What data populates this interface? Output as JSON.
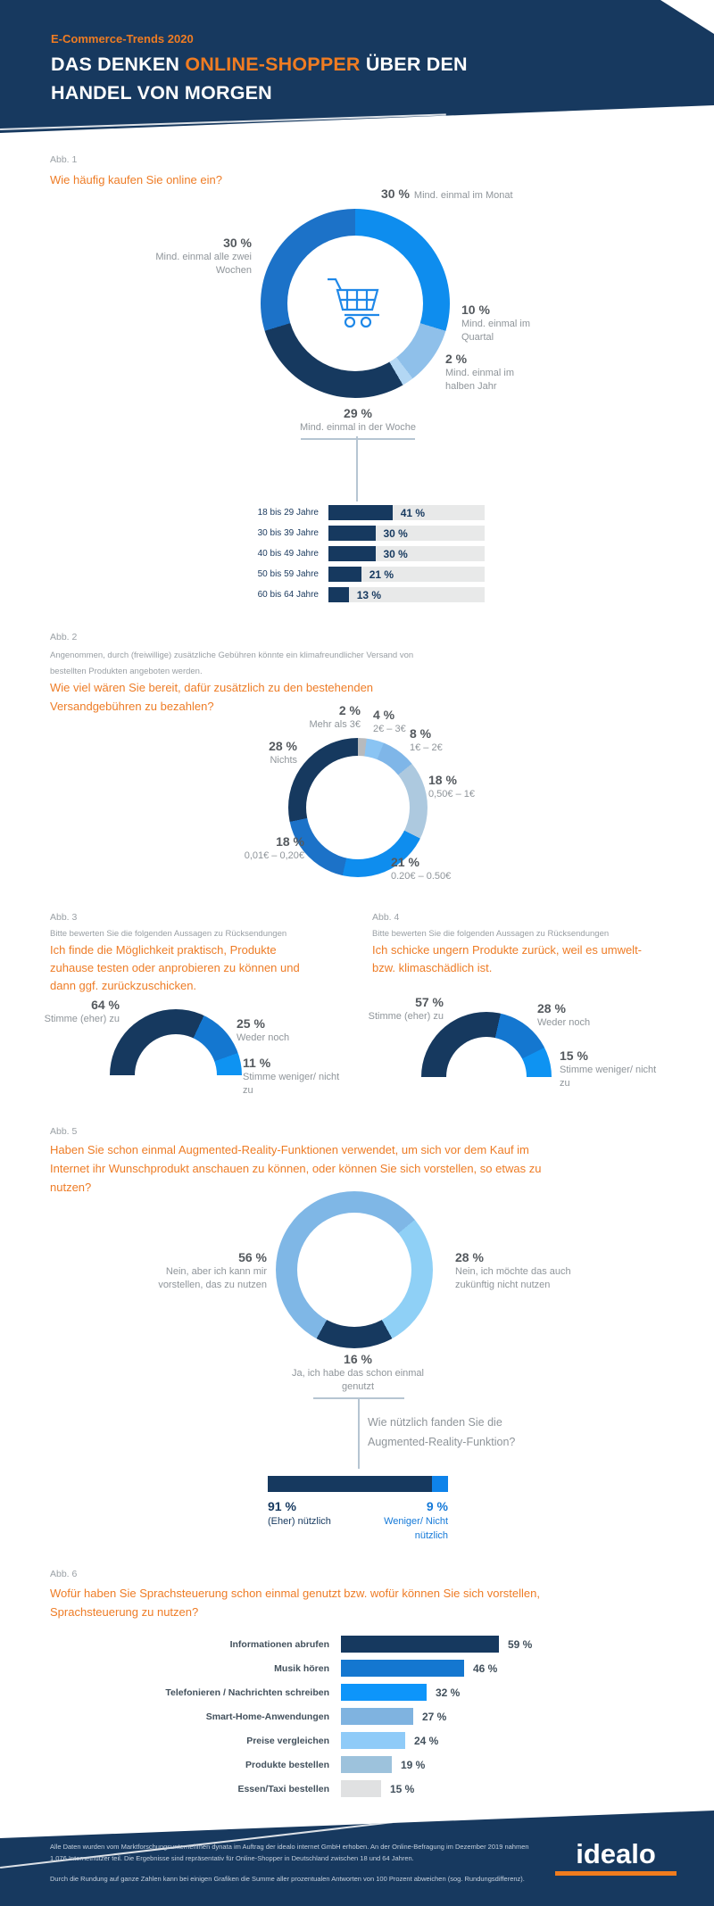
{
  "header": {
    "kicker": "E-Commerce-Trends 2020",
    "title_1": "DAS DENKEN ",
    "title_highlight": "ONLINE-SHOPPER",
    "title_2": " ÜBER DEN",
    "title_3": "HANDEL VON MORGEN"
  },
  "colors": {
    "navy": "#16395f",
    "orange": "#ee7c26",
    "bright_blue": "#0e8dee",
    "medium_blue": "#1c72c8",
    "light_blue": "#8fc0ea",
    "connector_gray": "#b6c5d2"
  },
  "figures": {
    "f1": {
      "label": "Abb. 1"
    },
    "f2": {
      "label": "Abb. 2",
      "intro": "Angenommen, durch (freiwillige) zusätzliche Gebühren könnte ein klimafreundlicher Versand von bestellten Produkten angeboten werden.",
      "question": "Wie viel wären Sie bereit, dafür zusätzlich zu den bestehenden Versandgebühren zu bezahlen?"
    },
    "f3": {
      "label": "Abb. 3",
      "intro": "Bitte bewerten Sie die folgenden Aussagen zu Rücksendungen",
      "statement": "Ich finde die Möglichkeit praktisch, Produkte zuhause testen oder anprobieren zu können und dann ggf. zurückzuschicken."
    },
    "f4": {
      "label": "Abb. 4",
      "intro": "Bitte bewerten Sie die folgenden Aussagen zu Rücksendungen",
      "statement": "Ich schicke ungern Produkte zurück, weil es umwelt- bzw. klimaschädlich ist."
    },
    "f5": {
      "label": "Abb. 5"
    },
    "f6": {
      "label": "Abb. 6"
    }
  },
  "chart_data": [
    {
      "id": "abb1",
      "type": "donut",
      "question": "Wie häufig kaufen Sie online ein?",
      "center_icon": "shopping-cart-icon",
      "segments": [
        {
          "label": "Mind. einmal im Monat",
          "value": 30,
          "pct": "30 %",
          "color": "#0e8dee"
        },
        {
          "label": "Mind. einmal im Quartal",
          "value": 10,
          "pct": "10 %",
          "color": "#8fc0ea"
        },
        {
          "label": "Mind. einmal im halben Jahr",
          "value": 2,
          "pct": "2 %",
          "color": "#b3d7f4"
        },
        {
          "label": "Mind. einmal in der Woche",
          "value": 29,
          "pct": "29 %",
          "color": "#16395f"
        },
        {
          "label": "Mind. einmal alle zwei Wochen",
          "value": 30,
          "pct": "30 %",
          "color": "#1c72c8"
        }
      ]
    },
    {
      "id": "abb1-age",
      "type": "bar",
      "linked_to": "Mind. einmal in der Woche",
      "rows": [
        {
          "label": "18 bis 29 Jahre",
          "value": 41,
          "pct": "41 %"
        },
        {
          "label": "30 bis 39 Jahre",
          "value": 30,
          "pct": "30 %"
        },
        {
          "label": "40 bis 49 Jahre",
          "value": 30,
          "pct": "30 %"
        },
        {
          "label": "50 bis 59 Jahre",
          "value": 21,
          "pct": "21 %"
        },
        {
          "label": "60 bis 64 Jahre",
          "value": 13,
          "pct": "13 %"
        }
      ]
    },
    {
      "id": "abb2",
      "type": "donut",
      "segments": [
        {
          "label": "Mehr als 3€",
          "value": 2,
          "pct": "2 %",
          "color": "#b7babd"
        },
        {
          "label": "2€ – 3€",
          "value": 4,
          "pct": "4 %",
          "color": "#8ac4f3"
        },
        {
          "label": "1€ – 2€",
          "value": 8,
          "pct": "8 %",
          "color": "#7fb6e8"
        },
        {
          "label": "0,50€ – 1€",
          "value": 18,
          "pct": "18 %",
          "color": "#adc9df"
        },
        {
          "label": "0.20€ – 0.50€",
          "value": 21,
          "pct": "21 %",
          "color": "#0e8dee"
        },
        {
          "label": "0,01€ – 0,20€",
          "value": 18,
          "pct": "18 %",
          "color": "#1c72c8"
        },
        {
          "label": "Nichts",
          "value": 28,
          "pct": "28 %",
          "color": "#16395f"
        }
      ]
    },
    {
      "id": "abb3",
      "type": "semi-donut",
      "segments": [
        {
          "label": "Stimme (eher) zu",
          "value": 64,
          "pct": "64 %",
          "color": "#16395f"
        },
        {
          "label": "Weder noch",
          "value": 25,
          "pct": "25 %",
          "color": "#1477d0"
        },
        {
          "label": "Stimme weniger/ nicht zu",
          "value": 11,
          "pct": "11 %",
          "color": "#0e93f2"
        }
      ]
    },
    {
      "id": "abb4",
      "type": "semi-donut",
      "segments": [
        {
          "label": "Stimme (eher) zu",
          "value": 57,
          "pct": "57 %",
          "color": "#16395f"
        },
        {
          "label": "Weder noch",
          "value": 28,
          "pct": "28 %",
          "color": "#1477d0"
        },
        {
          "label": "Stimme weniger/ nicht zu",
          "value": 15,
          "pct": "15 %",
          "color": "#0e93f2"
        }
      ]
    },
    {
      "id": "abb5",
      "type": "donut",
      "question": "Haben Sie schon einmal Augmented-Reality-Funktionen verwendet, um sich vor dem Kauf im Internet ihr Wunschprodukt anschauen zu können, oder können Sie sich vorstellen, so etwas zu nutzen?",
      "segments": [
        {
          "label": "Nein, aber ich kann mir vorstellen, das zu nutzen",
          "value": 56,
          "pct": "56 %",
          "color": "#7fb7e6"
        },
        {
          "label": "Nein, ich möchte das auch zukünftig nicht nutzen",
          "value": 28,
          "pct": "28 %",
          "color": "#8fd0f6"
        },
        {
          "label": "Ja, ich habe das schon einmal genutzt",
          "value": 16,
          "pct": "16 %",
          "color": "#16395f"
        }
      ]
    },
    {
      "id": "abb5-usefulness",
      "type": "stacked-bar",
      "question": "Wie nützlich fanden Sie die Augmented-Reality-Funktion?",
      "segments": [
        {
          "label": "(Eher) nützlich",
          "value": 91,
          "pct": "91 %",
          "color": "#16395f"
        },
        {
          "label": "Weniger/ Nicht nützlich",
          "value": 9,
          "pct": "9 %",
          "color": "#0e83ea"
        }
      ]
    },
    {
      "id": "abb6",
      "type": "bar",
      "question": "Wofür haben Sie Sprachsteuerung schon einmal genutzt bzw. wofür können Sie sich vorstellen, Sprachsteuerung zu nutzen?",
      "rows": [
        {
          "label": "Informationen abrufen",
          "value": 59,
          "pct": "59 %",
          "color": "#16395f"
        },
        {
          "label": "Musik hören",
          "value": 46,
          "pct": "46 %",
          "color": "#1477d0"
        },
        {
          "label": "Telefonieren / Nachrichten schreiben",
          "value": 32,
          "pct": "32 %",
          "color": "#0d95fa"
        },
        {
          "label": "Smart-Home-Anwendungen",
          "value": 27,
          "pct": "27 %",
          "color": "#7fb3e0"
        },
        {
          "label": "Preise vergleichen",
          "value": 24,
          "pct": "24 %",
          "color": "#8fcbf8"
        },
        {
          "label": "Produkte bestellen",
          "value": 19,
          "pct": "19 %",
          "color": "#9dc2dc"
        },
        {
          "label": "Essen/Taxi bestellen",
          "value": 15,
          "pct": "15 %",
          "color": "#e0e1e2"
        }
      ]
    }
  ],
  "footer": {
    "note1": "Alle Daten wurden vom Marktforschungsunternehmen dynata im Auftrag der idealo internet GmbH erhoben. An der Online-Befragung im Dezember 2019 nahmen 1.076 Internetnutzer teil. Die Ergebnisse sind repräsentativ für Online-Shopper in Deutschland zwischen 18 und 64 Jahren.",
    "note2": "Durch die Rundung auf ganze Zahlen kann bei einigen Grafiken die Summe aller prozentualen Antworten von 100 Prozent abweichen (sog. Rundungsdifferenz).",
    "logo_text": "idealo"
  }
}
